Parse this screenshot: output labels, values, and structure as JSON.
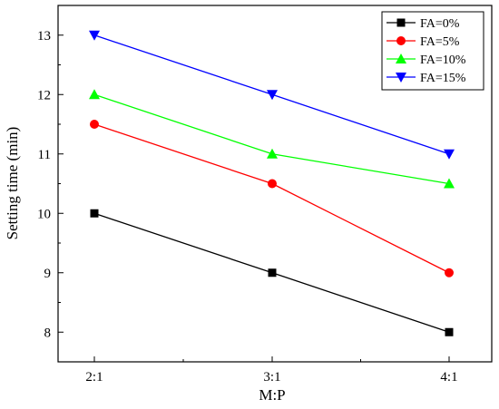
{
  "chart_data": {
    "type": "line",
    "xlabel": "M:P",
    "ylabel": "Setting time (min)",
    "categories": [
      "2:1",
      "3:1",
      "4:1"
    ],
    "ylim": [
      7.5,
      13.5
    ],
    "yticks": [
      8,
      9,
      10,
      11,
      12,
      13
    ],
    "grid": false,
    "legend_position": "top-right",
    "series": [
      {
        "name": "FA=0%",
        "values": [
          10,
          9,
          8
        ],
        "color": "#000000",
        "marker": "square"
      },
      {
        "name": "FA=5%",
        "values": [
          11.5,
          10.5,
          9
        ],
        "color": "#ff0000",
        "marker": "circle"
      },
      {
        "name": "FA=10%",
        "values": [
          12,
          11,
          10.5
        ],
        "color": "#00ff00",
        "marker": "triangle-up"
      },
      {
        "name": "FA=15%",
        "values": [
          13,
          12,
          11
        ],
        "color": "#0000ff",
        "marker": "triangle-down"
      }
    ]
  }
}
